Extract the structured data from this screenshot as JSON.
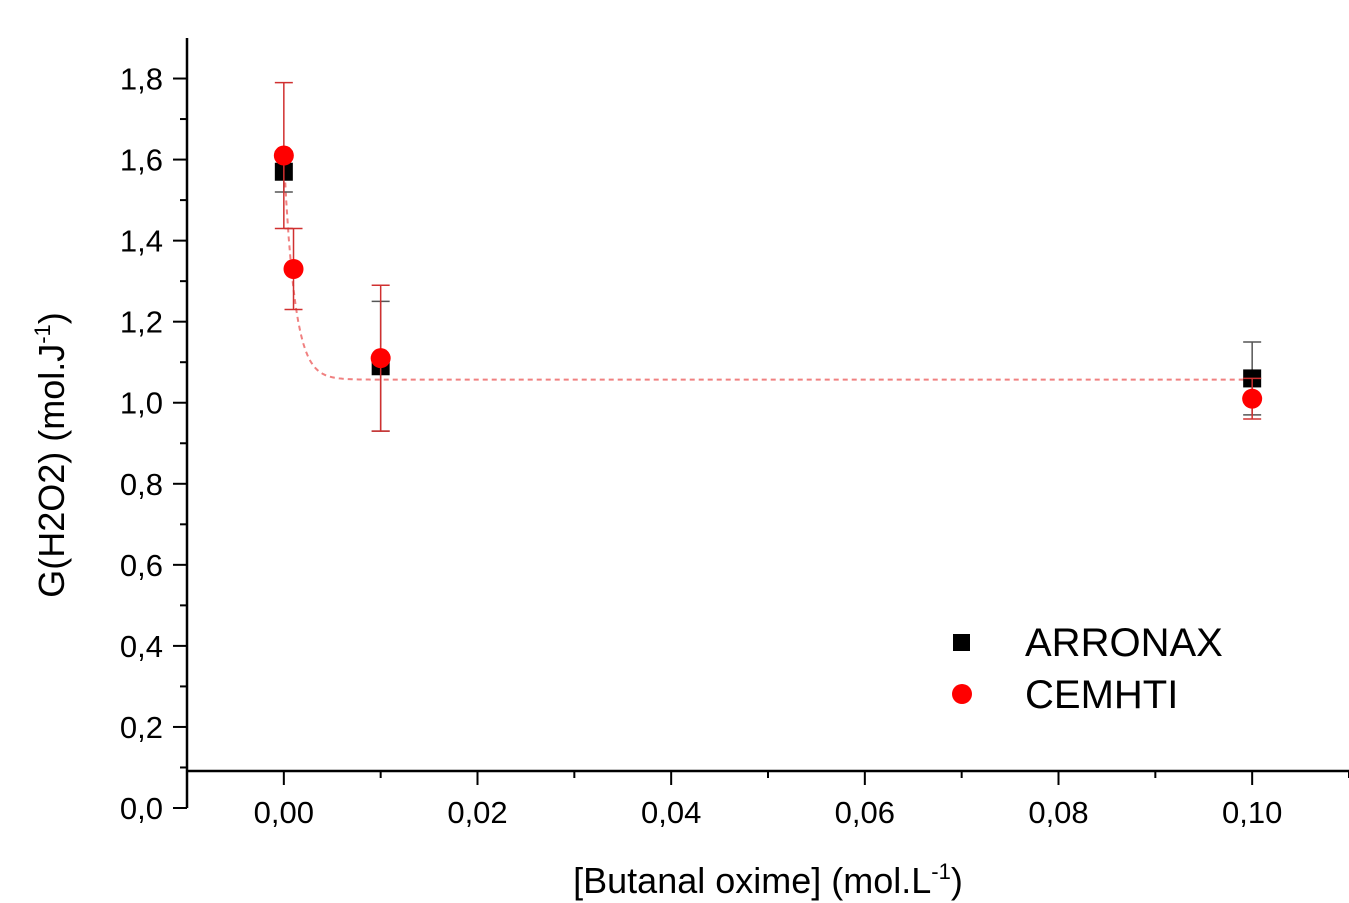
{
  "chart_data": {
    "type": "scatter",
    "xlabel": "[Butanal oxime] (mol.L",
    "xlabel_sup": "-1",
    "xlabel_end": ")",
    "ylabel": "G(H2O2) (mol.J",
    "ylabel_sup": "-1",
    "ylabel_end": ")",
    "xlim": [
      -0.01,
      0.11
    ],
    "ylim": [
      0,
      1.9
    ],
    "x_ticks": [
      0.0,
      0.02,
      0.04,
      0.06,
      0.08,
      0.1
    ],
    "x_tick_labels": [
      "0,00",
      "0,02",
      "0,04",
      "0,06",
      "0,08",
      "0,10"
    ],
    "y_ticks": [
      0.0,
      0.2,
      0.4,
      0.6,
      0.8,
      1.0,
      1.2,
      1.4,
      1.6,
      1.8
    ],
    "y_tick_labels": [
      "0,0",
      "0,2",
      "0,4",
      "0,6",
      "0,8",
      "1,0",
      "1,2",
      "1,4",
      "1,6",
      "1,8"
    ],
    "grid": false,
    "legend_position": "bottom-right",
    "series": [
      {
        "name": "ARRONAX",
        "marker": "square",
        "color": "#000000",
        "errorbar_color": "#555555",
        "x": [
          0.0,
          0.01,
          0.1
        ],
        "y": [
          1.57,
          1.09,
          1.06
        ],
        "yerr": [
          0.05,
          0.16,
          0.09
        ]
      },
      {
        "name": "CEMHTI",
        "marker": "circle",
        "color": "#ff0000",
        "errorbar_color": "#d03030",
        "x": [
          0.0,
          0.001,
          0.01,
          0.1
        ],
        "y": [
          1.61,
          1.33,
          1.11,
          1.01
        ],
        "yerr": [
          0.18,
          0.1,
          0.18,
          0.05
        ]
      }
    ],
    "fit": {
      "style": "dashed",
      "color": "#f08080",
      "model": "exponential decay",
      "y0": 1.057,
      "A": 0.553,
      "t": 0.0011
    }
  }
}
